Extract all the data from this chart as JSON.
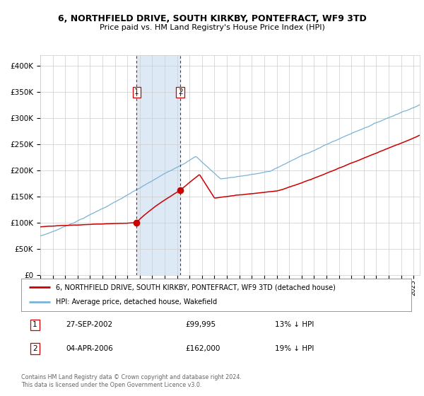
{
  "title_line1": "6, NORTHFIELD DRIVE, SOUTH KIRKBY, PONTEFRACT, WF9 3TD",
  "title_line2": "Price paid vs. HM Land Registry's House Price Index (HPI)",
  "legend_line1": "6, NORTHFIELD DRIVE, SOUTH KIRKBY, PONTEFRACT, WF9 3TD (detached house)",
  "legend_line2": "HPI: Average price, detached house, Wakefield",
  "annotation1_label": "1",
  "annotation1_date": "27-SEP-2002",
  "annotation1_price": "£99,995",
  "annotation1_hpi": "13% ↓ HPI",
  "annotation2_label": "2",
  "annotation2_date": "04-APR-2006",
  "annotation2_price": "£162,000",
  "annotation2_hpi": "19% ↓ HPI",
  "footer": "Contains HM Land Registry data © Crown copyright and database right 2024.\nThis data is licensed under the Open Government Licence v3.0.",
  "hpi_color": "#7ab3d4",
  "price_color": "#cc0000",
  "marker_color": "#cc0000",
  "shading_color": "#ddeaf5",
  "vline_color": "#cc0000",
  "ylim": [
    0,
    420000
  ],
  "yticks": [
    0,
    50000,
    100000,
    150000,
    200000,
    250000,
    300000,
    350000,
    400000
  ],
  "sale1_year": 2002.75,
  "sale1_value": 99995,
  "sale2_year": 2006.25,
  "sale2_value": 162000,
  "background_color": "#ffffff",
  "grid_color": "#cccccc"
}
